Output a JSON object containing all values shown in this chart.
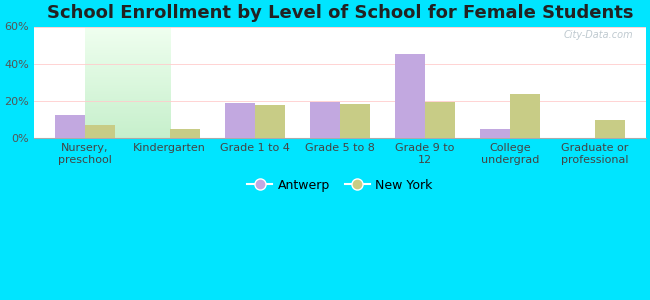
{
  "title": "School Enrollment by Level of School for Female Students",
  "categories": [
    "Nursery,\npreschool",
    "Kindergarten",
    "Grade 1 to 4",
    "Grade 5 to 8",
    "Grade 9 to\n12",
    "College\nundergrad",
    "Graduate or\nprofessional"
  ],
  "antwerp": [
    12.5,
    0,
    19,
    19.5,
    45,
    5,
    0
  ],
  "new_york": [
    7,
    5,
    18,
    18.5,
    19.5,
    23.5,
    9.5
  ],
  "antwerp_color": "#c2a8e0",
  "new_york_color": "#c8cc86",
  "background_outer": "#00e5ff",
  "ylim": [
    0,
    60
  ],
  "yticks": [
    0,
    20,
    40,
    60
  ],
  "ytick_labels": [
    "0%",
    "20%",
    "40%",
    "60%"
  ],
  "bar_width": 0.35,
  "title_fontsize": 13,
  "tick_fontsize": 8,
  "legend_fontsize": 9,
  "watermark": "City-Data.com"
}
